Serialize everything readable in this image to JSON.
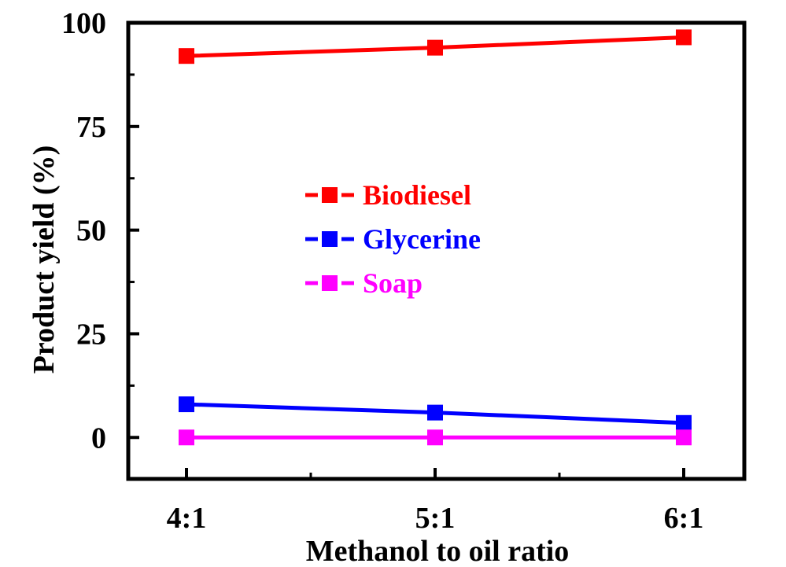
{
  "chart_data": {
    "type": "line",
    "xlabel": "Methanol to oil ratio",
    "ylabel": "Product yield (%)",
    "categories": [
      "4:1",
      "5:1",
      "6:1"
    ],
    "ylim": [
      -10,
      100
    ],
    "yticks": [
      0,
      25,
      50,
      75,
      100
    ],
    "grid": false,
    "legend_position": "center-left",
    "series": [
      {
        "name": "Biodiesel",
        "values": [
          92,
          94,
          96.5
        ],
        "color": "#ff0000",
        "marker": "square"
      },
      {
        "name": "Glycerine",
        "values": [
          8,
          6,
          3.5
        ],
        "color": "#0000ff",
        "marker": "square"
      },
      {
        "name": "Soap",
        "values": [
          0,
          0,
          0
        ],
        "color": "#ff00ff",
        "marker": "square"
      }
    ]
  }
}
